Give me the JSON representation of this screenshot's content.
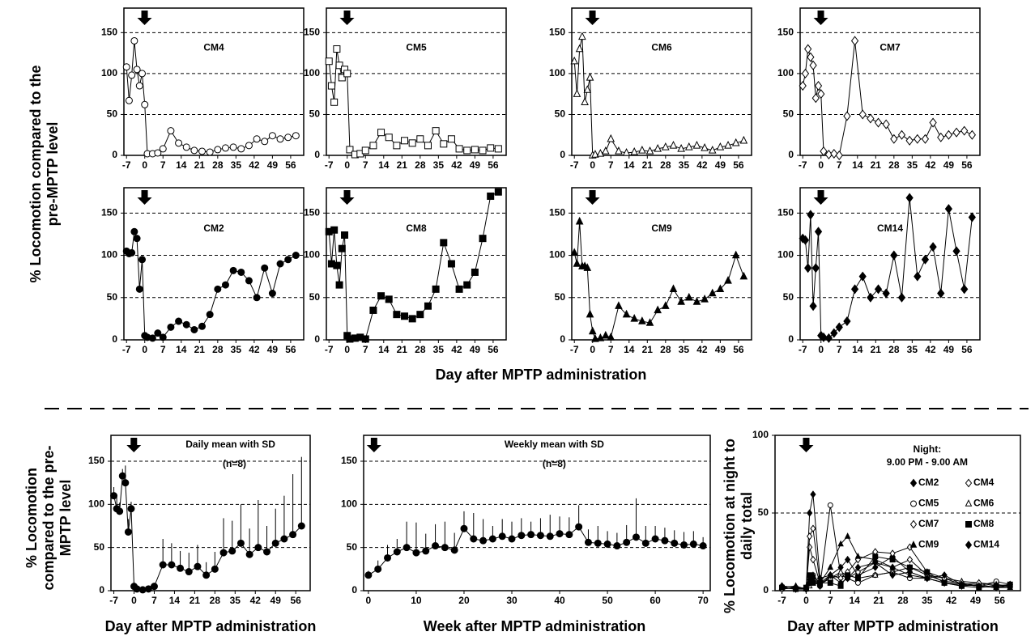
{
  "figure": {
    "top_ylabel": "% Locomotion compared to the pre-MPTP level",
    "top_xlabel": "Day after MPTP administration"
  },
  "chart_data": [
    {
      "type": "line",
      "title": "CM4",
      "marker": "circle-open",
      "color": "#000000",
      "grid": true,
      "x": [
        -7,
        -6,
        -5,
        -4,
        -3,
        -2,
        -1,
        0,
        1,
        3,
        5,
        7,
        10,
        13,
        16,
        19,
        22,
        25,
        28,
        31,
        34,
        37,
        40,
        43,
        46,
        49,
        52,
        55,
        58
      ],
      "values": [
        108,
        67,
        98,
        140,
        105,
        85,
        100,
        62,
        2,
        2,
        3,
        8,
        30,
        15,
        10,
        6,
        5,
        4,
        7,
        9,
        10,
        8,
        12,
        20,
        17,
        24,
        20,
        22,
        24
      ],
      "xlim": [
        -8,
        61
      ],
      "xticks": [
        -7,
        0,
        7,
        14,
        21,
        28,
        35,
        42,
        49,
        56
      ],
      "ylim": [
        0,
        180
      ],
      "yticks": [
        0,
        50,
        100,
        150
      ]
    },
    {
      "type": "line",
      "title": "CM5",
      "marker": "square-open",
      "color": "#000000",
      "grid": true,
      "x": [
        -7,
        -6,
        -5,
        -4,
        -3,
        -2,
        -1,
        0,
        1,
        3,
        5,
        7,
        10,
        13,
        16,
        19,
        22,
        25,
        28,
        31,
        34,
        37,
        40,
        43,
        46,
        49,
        52,
        55,
        58
      ],
      "values": [
        115,
        85,
        65,
        130,
        110,
        95,
        105,
        100,
        7,
        1,
        2,
        6,
        12,
        28,
        22,
        12,
        18,
        15,
        20,
        12,
        30,
        14,
        20,
        8,
        6,
        7,
        6,
        9,
        8
      ],
      "xlim": [
        -8,
        61
      ],
      "xticks": [
        -7,
        0,
        7,
        14,
        21,
        28,
        35,
        42,
        49,
        56
      ],
      "ylim": [
        0,
        180
      ],
      "yticks": [
        0,
        50,
        100,
        150
      ]
    },
    {
      "type": "line",
      "title": "CM6",
      "marker": "triangle-open",
      "color": "#000000",
      "grid": true,
      "x": [
        -7,
        -6,
        -5,
        -4,
        -3,
        -2,
        -1,
        0,
        1,
        3,
        5,
        7,
        10,
        13,
        16,
        19,
        22,
        25,
        28,
        31,
        34,
        37,
        40,
        43,
        46,
        49,
        52,
        55,
        58
      ],
      "values": [
        115,
        75,
        130,
        145,
        65,
        80,
        95,
        0,
        1,
        2,
        5,
        20,
        5,
        3,
        4,
        6,
        5,
        8,
        10,
        12,
        8,
        10,
        12,
        9,
        6,
        10,
        12,
        15,
        18
      ],
      "xlim": [
        -8,
        61
      ],
      "xticks": [
        -7,
        0,
        7,
        14,
        21,
        28,
        35,
        42,
        49,
        56
      ],
      "ylim": [
        0,
        180
      ],
      "yticks": [
        0,
        50,
        100,
        150
      ]
    },
    {
      "type": "line",
      "title": "CM7",
      "marker": "diamond-open",
      "color": "#000000",
      "grid": true,
      "x": [
        -7,
        -6,
        -5,
        -4,
        -3,
        -2,
        -1,
        0,
        1,
        3,
        5,
        7,
        10,
        13,
        16,
        19,
        22,
        25,
        28,
        31,
        34,
        37,
        40,
        43,
        46,
        49,
        52,
        55,
        58
      ],
      "values": [
        85,
        100,
        130,
        120,
        110,
        70,
        85,
        75,
        5,
        1,
        2,
        0,
        48,
        140,
        50,
        45,
        40,
        38,
        20,
        25,
        18,
        20,
        20,
        40,
        22,
        25,
        28,
        30,
        25
      ],
      "xlim": [
        -8,
        61
      ],
      "xticks": [
        -7,
        0,
        7,
        14,
        21,
        28,
        35,
        42,
        49,
        56
      ],
      "ylim": [
        0,
        180
      ],
      "yticks": [
        0,
        50,
        100,
        150
      ]
    },
    {
      "type": "line",
      "title": "CM2",
      "marker": "circle-filled",
      "color": "#000000",
      "grid": true,
      "x": [
        -7,
        -6,
        -5,
        -4,
        -3,
        -2,
        -1,
        0,
        1,
        3,
        5,
        7,
        10,
        13,
        16,
        19,
        22,
        25,
        28,
        31,
        34,
        37,
        40,
        43,
        46,
        49,
        52,
        55,
        58
      ],
      "values": [
        105,
        102,
        103,
        128,
        120,
        60,
        95,
        5,
        3,
        2,
        8,
        3,
        15,
        22,
        18,
        12,
        16,
        30,
        60,
        65,
        82,
        80,
        70,
        50,
        85,
        55,
        90,
        95,
        100
      ],
      "xlim": [
        -8,
        61
      ],
      "xticks": [
        -7,
        0,
        7,
        14,
        21,
        28,
        35,
        42,
        49,
        56
      ],
      "ylim": [
        0,
        180
      ],
      "yticks": [
        0,
        50,
        100,
        150
      ]
    },
    {
      "type": "line",
      "title": "CM8",
      "marker": "square-filled",
      "color": "#000000",
      "grid": true,
      "x": [
        -7,
        -6,
        -5,
        -4,
        -3,
        -2,
        -1,
        0,
        1,
        3,
        5,
        7,
        10,
        13,
        16,
        19,
        22,
        25,
        28,
        31,
        34,
        37,
        40,
        43,
        46,
        49,
        52,
        55,
        58
      ],
      "values": [
        128,
        90,
        130,
        88,
        65,
        108,
        124,
        5,
        1,
        2,
        3,
        1,
        35,
        52,
        48,
        30,
        28,
        25,
        30,
        40,
        60,
        115,
        90,
        60,
        65,
        80,
        120,
        170,
        175
      ],
      "xlim": [
        -8,
        61
      ],
      "xticks": [
        -7,
        0,
        7,
        14,
        21,
        28,
        35,
        42,
        49,
        56
      ],
      "ylim": [
        0,
        180
      ],
      "yticks": [
        0,
        50,
        100,
        150
      ]
    },
    {
      "type": "line",
      "title": "CM9",
      "marker": "triangle-filled",
      "color": "#000000",
      "grid": true,
      "x": [
        -7,
        -6,
        -5,
        -4,
        -3,
        -2,
        -1,
        0,
        1,
        3,
        5,
        7,
        10,
        13,
        16,
        19,
        22,
        25,
        28,
        31,
        34,
        37,
        40,
        43,
        46,
        49,
        52,
        55,
        58
      ],
      "values": [
        103,
        90,
        140,
        87,
        87,
        85,
        30,
        10,
        1,
        2,
        5,
        3,
        40,
        30,
        25,
        22,
        20,
        35,
        40,
        60,
        45,
        50,
        45,
        48,
        55,
        60,
        70,
        100,
        75
      ],
      "xlim": [
        -8,
        61
      ],
      "xticks": [
        -7,
        0,
        7,
        14,
        21,
        28,
        35,
        42,
        49,
        56
      ],
      "ylim": [
        0,
        180
      ],
      "yticks": [
        0,
        50,
        100,
        150
      ]
    },
    {
      "type": "line",
      "title": "CM14",
      "marker": "diamond-filled",
      "color": "#000000",
      "grid": true,
      "x": [
        -7,
        -6,
        -5,
        -4,
        -3,
        -2,
        -1,
        0,
        1,
        3,
        5,
        7,
        10,
        13,
        16,
        19,
        22,
        25,
        28,
        31,
        34,
        37,
        40,
        43,
        46,
        49,
        52,
        55,
        58
      ],
      "values": [
        120,
        118,
        85,
        148,
        40,
        85,
        128,
        5,
        3,
        2,
        8,
        15,
        22,
        60,
        75,
        50,
        60,
        55,
        100,
        50,
        168,
        75,
        95,
        110,
        55,
        155,
        105,
        60,
        145
      ],
      "xlim": [
        -8,
        61
      ],
      "xticks": [
        -7,
        0,
        7,
        14,
        21,
        28,
        35,
        42,
        49,
        56
      ],
      "ylim": [
        0,
        180
      ],
      "yticks": [
        0,
        50,
        100,
        150
      ]
    },
    {
      "type": "line",
      "title": "Daily mean with SD",
      "subtitle": "(n=8)",
      "marker": "circle-filled",
      "color": "#000000",
      "grid": true,
      "xlabel": "Day after MPTP administration",
      "ylabel": "% Locomotion compared to the pre-MPTP level",
      "x": [
        -7,
        -6,
        -5,
        -4,
        -3,
        -2,
        -1,
        0,
        1,
        3,
        5,
        7,
        10,
        13,
        16,
        19,
        22,
        25,
        28,
        31,
        34,
        37,
        40,
        43,
        46,
        49,
        52,
        55,
        58
      ],
      "values": [
        110,
        95,
        92,
        133,
        125,
        68,
        95,
        5,
        2,
        1,
        2,
        5,
        30,
        30,
        26,
        22,
        28,
        18,
        25,
        44,
        46,
        55,
        42,
        50,
        45,
        55,
        60,
        65,
        75
      ],
      "errors": [
        10,
        15,
        10,
        8,
        20,
        15,
        8,
        5,
        3,
        2,
        3,
        4,
        30,
        25,
        20,
        22,
        25,
        15,
        20,
        40,
        35,
        45,
        30,
        55,
        30,
        40,
        50,
        70,
        80
      ],
      "xlim": [
        -8,
        61
      ],
      "xticks": [
        -7,
        0,
        7,
        14,
        21,
        28,
        35,
        42,
        49,
        56
      ],
      "ylim": [
        0,
        180
      ],
      "yticks": [
        0,
        50,
        100,
        150
      ]
    },
    {
      "type": "line",
      "title": "Weekly mean with SD",
      "subtitle": "(n=8)",
      "marker": "circle-filled",
      "color": "#000000",
      "grid": true,
      "xlabel": "Week after MPTP administration",
      "x": [
        0,
        2,
        4,
        6,
        8,
        10,
        12,
        14,
        16,
        18,
        20,
        22,
        24,
        26,
        28,
        30,
        32,
        34,
        36,
        38,
        40,
        42,
        44,
        46,
        48,
        50,
        52,
        54,
        56,
        58,
        60,
        62,
        64,
        66,
        68,
        70
      ],
      "values": [
        18,
        25,
        38,
        45,
        50,
        44,
        46,
        52,
        50,
        47,
        72,
        60,
        58,
        60,
        63,
        60,
        64,
        65,
        64,
        63,
        66,
        65,
        74,
        56,
        55,
        54,
        52,
        56,
        62,
        55,
        60,
        58,
        55,
        53,
        54,
        52
      ],
      "errors": [
        5,
        10,
        15,
        15,
        30,
        35,
        20,
        25,
        30,
        20,
        20,
        30,
        25,
        15,
        20,
        20,
        20,
        15,
        20,
        25,
        20,
        20,
        25,
        15,
        20,
        15,
        15,
        20,
        45,
        20,
        15,
        15,
        15,
        15,
        15,
        10
      ],
      "xlim": [
        -1,
        71.5
      ],
      "xticks": [
        0,
        10,
        20,
        30,
        40,
        50,
        60,
        70
      ],
      "ylim": [
        0,
        180
      ],
      "yticks": [
        0,
        50,
        100,
        150
      ]
    },
    {
      "type": "line",
      "title": "Night:",
      "subtitle": "9.00 PM - 9.00 AM",
      "grid": true,
      "legend": "upper right",
      "xlabel": "Day after MPTP administration",
      "ylabel": "% Locomotion at night to daily total",
      "x": [
        -7,
        -3,
        0,
        1,
        2,
        4,
        7,
        10,
        12,
        15,
        20,
        25,
        30,
        35,
        40,
        45,
        50,
        55,
        59
      ],
      "series": [
        {
          "name": "CM2",
          "marker": "diamond-filled",
          "color": "#000000",
          "values": [
            3,
            2,
            1,
            50,
            62,
            8,
            10,
            15,
            20,
            10,
            15,
            22,
            12,
            8,
            5,
            3,
            4,
            2,
            3
          ]
        },
        {
          "name": "CM4",
          "marker": "diamond-open",
          "color": "#000000",
          "values": [
            2,
            1,
            2,
            28,
            20,
            5,
            8,
            10,
            8,
            12,
            18,
            15,
            20,
            10,
            6,
            5,
            3,
            2,
            3
          ]
        },
        {
          "name": "CM5",
          "marker": "circle-open",
          "color": "#000000",
          "values": [
            1,
            2,
            1,
            5,
            10,
            3,
            55,
            10,
            8,
            5,
            10,
            12,
            8,
            8,
            5,
            4,
            3,
            6,
            4
          ]
        },
        {
          "name": "CM6",
          "marker": "triangle-open",
          "color": "#000000",
          "values": [
            2,
            1,
            1,
            3,
            5,
            4,
            8,
            12,
            10,
            8,
            10,
            12,
            15,
            10,
            8,
            6,
            5,
            4,
            3
          ]
        },
        {
          "name": "CM7",
          "marker": "diamond-open",
          "color": "#000000",
          "values": [
            1,
            2,
            1,
            35,
            40,
            5,
            10,
            8,
            12,
            20,
            25,
            24,
            28,
            12,
            8,
            4,
            5,
            3,
            4
          ]
        },
        {
          "name": "CM8",
          "marker": "square-filled",
          "color": "#000000",
          "values": [
            2,
            1,
            2,
            10,
            5,
            5,
            5,
            3,
            10,
            8,
            22,
            20,
            15,
            12,
            5,
            3,
            2,
            3,
            4
          ]
        },
        {
          "name": "CM9",
          "marker": "triangle-filled",
          "color": "#000000",
          "values": [
            2,
            3,
            1,
            8,
            10,
            5,
            15,
            30,
            35,
            22,
            20,
            15,
            10,
            8,
            5,
            4,
            3,
            2,
            2
          ]
        },
        {
          "name": "CM14",
          "marker": "diamond-filled",
          "color": "#000000",
          "values": [
            3,
            2,
            1,
            5,
            8,
            3,
            10,
            5,
            8,
            15,
            18,
            10,
            12,
            8,
            10,
            4,
            3,
            2,
            4
          ]
        }
      ],
      "xlim": [
        -9,
        62
      ],
      "xticks": [
        -7,
        0,
        7,
        14,
        21,
        28,
        35,
        42,
        49,
        56
      ],
      "ylim": [
        0,
        100
      ],
      "yticks": [
        0,
        50,
        100
      ]
    }
  ]
}
